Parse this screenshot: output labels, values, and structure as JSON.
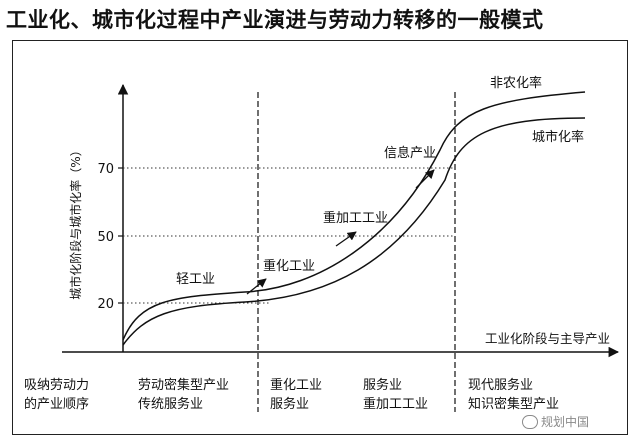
{
  "title": "工业化、城市化过程中产业演进与劳动力转移的一般模式",
  "y_axis_label": "城市化阶段与城市化率（%）",
  "x_axis_label": "工业化阶段与主导产业",
  "curve_labels": {
    "upper": "非农化率",
    "lower": "城市化率"
  },
  "y_ticks": [
    "70",
    "50",
    "20"
  ],
  "stage_labels": [
    "轻工业",
    "重化工业",
    "重加工工业",
    "信息产业"
  ],
  "bottom_header": {
    "line1": "吸纳劳动力",
    "line2": "的产业顺序"
  },
  "bottom_columns": [
    {
      "line1": "劳动密集型产业",
      "line2": "传统服务业"
    },
    {
      "line1": "重化工业",
      "line2": "服务业"
    },
    {
      "line1": "服务业",
      "line2": "重加工工业"
    },
    {
      "line1": "现代服务业",
      "line2": "知识密集型产业"
    }
  ],
  "watermark": "规划中国"
}
